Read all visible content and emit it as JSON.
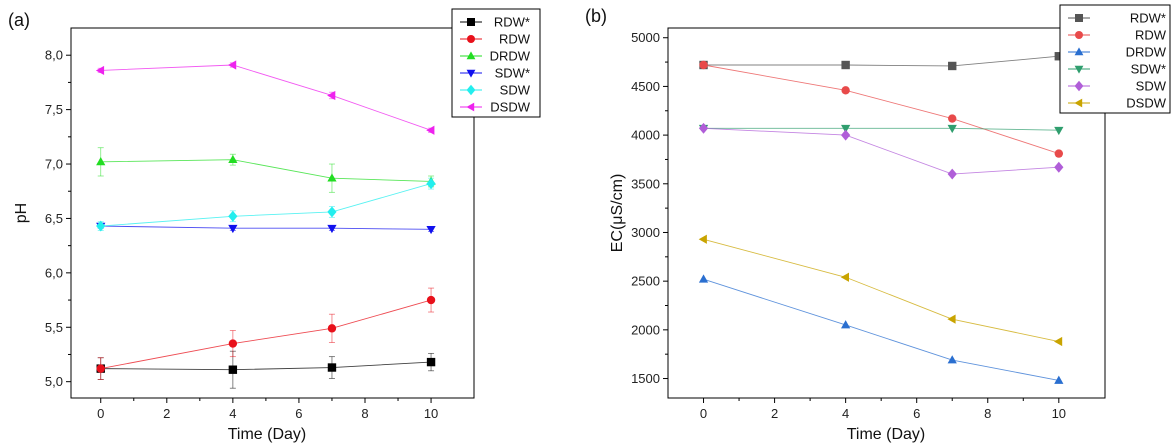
{
  "chart_data": [
    {
      "type": "scatter",
      "panel_label": "(a)",
      "xlabel": "Time (Day)",
      "ylabel": "pH",
      "xlim": [
        -0.9,
        11.3
      ],
      "ylim": [
        4.85,
        8.25
      ],
      "xticks": [
        0,
        2,
        4,
        6,
        8,
        10
      ],
      "yticks": [
        5.0,
        5.5,
        6.0,
        6.5,
        7.0,
        7.5,
        8.0
      ],
      "ytick_labels": [
        "5,0",
        "5,5",
        "6,0",
        "6,5",
        "7,0",
        "7,5",
        "8,0"
      ],
      "legend_position": "top-right",
      "series": [
        {
          "name": "RDW*",
          "marker": "square",
          "color": "#000000",
          "x": [
            0,
            4,
            7,
            10
          ],
          "y": [
            5.12,
            5.11,
            5.13,
            5.18
          ],
          "err": [
            0.1,
            0.17,
            0.1,
            0.08
          ]
        },
        {
          "name": "RDW",
          "marker": "circle",
          "color": "#e8101a",
          "x": [
            0,
            4,
            7,
            10
          ],
          "y": [
            5.12,
            5.35,
            5.49,
            5.75
          ],
          "err": [
            0.1,
            0.12,
            0.13,
            0.11
          ]
        },
        {
          "name": "DRDW",
          "marker": "triangle-up",
          "color": "#22dd22",
          "x": [
            0,
            4,
            7,
            10
          ],
          "y": [
            7.02,
            7.04,
            6.87,
            6.84
          ],
          "err": [
            0.13,
            0.05,
            0.13,
            0.05
          ]
        },
        {
          "name": "SDW*",
          "marker": "triangle-down",
          "color": "#1010ee",
          "x": [
            0,
            4,
            7,
            10
          ],
          "y": [
            6.43,
            6.41,
            6.41,
            6.4
          ],
          "err": [
            0.02,
            0.02,
            0.02,
            0.02
          ]
        },
        {
          "name": "SDW",
          "marker": "diamond",
          "color": "#22eeee",
          "x": [
            0,
            4,
            7,
            10
          ],
          "y": [
            6.43,
            6.52,
            6.56,
            6.82
          ],
          "err": [
            0.04,
            0.05,
            0.05,
            0.05
          ]
        },
        {
          "name": "DSDW",
          "marker": "triangle-left",
          "color": "#ee22ee",
          "x": [
            0,
            4,
            7,
            10
          ],
          "y": [
            7.86,
            7.91,
            7.63,
            7.31
          ],
          "err": [
            0.02,
            0.02,
            0.03,
            0.02
          ]
        }
      ]
    },
    {
      "type": "scatter",
      "panel_label": "(b)",
      "xlabel": "Time (Day)",
      "ylabel": "EC(μS/cm)",
      "xlim": [
        -1.0,
        11.3
      ],
      "ylim": [
        1300,
        5100
      ],
      "xticks": [
        0,
        2,
        4,
        6,
        8,
        10
      ],
      "yticks": [
        1500,
        2000,
        2500,
        3000,
        3500,
        4000,
        4500,
        5000
      ],
      "ytick_labels": [
        "1500",
        "2000",
        "2500",
        "3000",
        "3500",
        "4000",
        "4500",
        "5000"
      ],
      "legend_position": "top-right",
      "series": [
        {
          "name": "RDW*",
          "marker": "square",
          "color": "#555555",
          "x": [
            0,
            4,
            7,
            10
          ],
          "y": [
            4720,
            4720,
            4710,
            4810
          ]
        },
        {
          "name": "RDW",
          "marker": "circle",
          "color": "#e84a4a",
          "x": [
            0,
            4,
            7,
            10
          ],
          "y": [
            4720,
            4460,
            4170,
            3810
          ]
        },
        {
          "name": "DRDW",
          "marker": "triangle-up",
          "color": "#2a6fd0",
          "x": [
            0,
            4,
            7,
            10
          ],
          "y": [
            2520,
            2050,
            1690,
            1480
          ]
        },
        {
          "name": "SDW*",
          "marker": "triangle-down",
          "color": "#2f9e6e",
          "x": [
            0,
            4,
            7,
            10
          ],
          "y": [
            4070,
            4070,
            4070,
            4050
          ]
        },
        {
          "name": "SDW",
          "marker": "diamond",
          "color": "#b05ed8",
          "x": [
            0,
            4,
            7,
            10
          ],
          "y": [
            4070,
            4000,
            3600,
            3670
          ]
        },
        {
          "name": "DSDW",
          "marker": "triangle-left",
          "color": "#c9a400",
          "x": [
            0,
            4,
            7,
            10
          ],
          "y": [
            2930,
            2540,
            2110,
            1880
          ]
        }
      ]
    }
  ]
}
